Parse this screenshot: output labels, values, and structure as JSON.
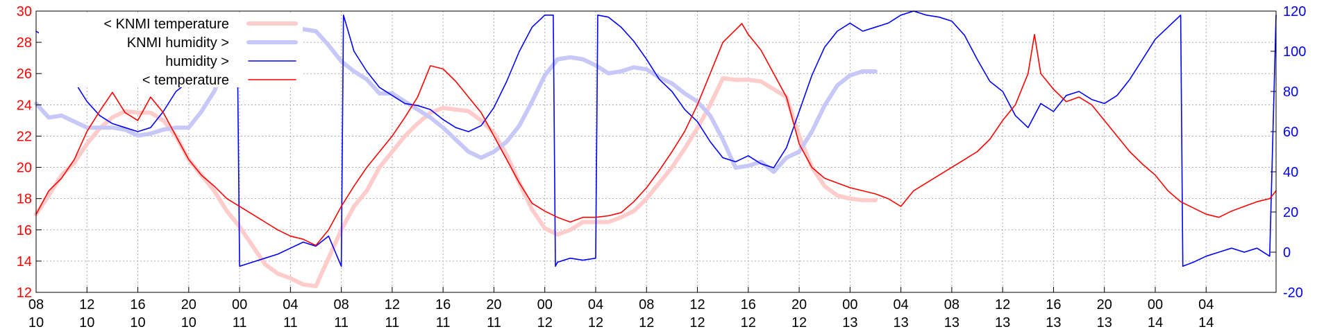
{
  "chart_data": {
    "type": "line",
    "title": "",
    "xlabel": "",
    "ylabel": "",
    "grid": true,
    "legend_placement": "top-left",
    "x_axis": {
      "ticks": [
        {
          "hour": "08",
          "day": "10"
        },
        {
          "hour": "12",
          "day": "10"
        },
        {
          "hour": "16",
          "day": "10"
        },
        {
          "hour": "20",
          "day": "10"
        },
        {
          "hour": "00",
          "day": "11"
        },
        {
          "hour": "04",
          "day": "11"
        },
        {
          "hour": "08",
          "day": "11"
        },
        {
          "hour": "12",
          "day": "11"
        },
        {
          "hour": "16",
          "day": "11"
        },
        {
          "hour": "20",
          "day": "11"
        },
        {
          "hour": "00",
          "day": "12"
        },
        {
          "hour": "04",
          "day": "12"
        },
        {
          "hour": "08",
          "day": "12"
        },
        {
          "hour": "12",
          "day": "12"
        },
        {
          "hour": "16",
          "day": "12"
        },
        {
          "hour": "20",
          "day": "12"
        },
        {
          "hour": "00",
          "day": "13"
        },
        {
          "hour": "04",
          "day": "13"
        },
        {
          "hour": "08",
          "day": "13"
        },
        {
          "hour": "12",
          "day": "13"
        },
        {
          "hour": "16",
          "day": "13"
        },
        {
          "hour": "20",
          "day": "13"
        },
        {
          "hour": "00",
          "day": "14"
        },
        {
          "hour": "04",
          "day": "14"
        }
      ],
      "range": [
        "10 08:00",
        "14 09:30"
      ]
    },
    "y_left": {
      "ticks": [
        "12",
        "14",
        "16",
        "18",
        "20",
        "22",
        "24",
        "26",
        "28",
        "30"
      ],
      "ylim": [
        12,
        30
      ],
      "color": "#ff0000"
    },
    "y_right": {
      "ticks": [
        "-20",
        "0",
        "20",
        "40",
        "60",
        "80",
        "100",
        "120"
      ],
      "ylim": [
        -20,
        120
      ],
      "color": "#0000ff"
    },
    "series": [
      {
        "name": "< KNMI temperature",
        "axis": "left",
        "color": "#ffcccc",
        "x": [
          "10 08:00",
          "10 09:00",
          "10 10:00",
          "10 11:00",
          "10 12:00",
          "10 13:00",
          "10 14:00",
          "10 15:00",
          "10 16:00",
          "10 17:00",
          "10 18:00",
          "10 19:00",
          "10 20:00",
          "10 21:00",
          "10 22:00",
          "10 23:00",
          "11 00:00",
          "11 01:00",
          "11 02:00",
          "11 03:00",
          "11 04:00",
          "11 05:00",
          "11 06:00",
          "11 07:00",
          "11 08:00",
          "11 09:00",
          "11 10:00",
          "11 11:00",
          "11 12:00",
          "11 13:00",
          "11 14:00",
          "11 15:00",
          "11 16:00",
          "11 17:00",
          "11 18:00",
          "11 19:00",
          "11 20:00",
          "11 21:00",
          "11 22:00",
          "11 23:00",
          "12 00:00",
          "12 01:00",
          "12 02:00",
          "12 03:00",
          "12 04:00",
          "12 05:00",
          "12 06:00",
          "12 07:00",
          "12 08:00",
          "12 09:00",
          "12 10:00",
          "12 11:00",
          "12 12:00",
          "12 13:00",
          "12 14:00",
          "12 15:00",
          "12 16:00",
          "12 17:00",
          "12 18:00",
          "12 19:00",
          "12 20:00",
          "12 21:00",
          "12 22:00",
          "12 23:00",
          "13 00:00",
          "13 01:00",
          "13 02:00"
        ],
        "values": [
          17.0,
          18.2,
          19.5,
          20.3,
          21.5,
          22.5,
          23.2,
          23.6,
          23.5,
          23.5,
          23.0,
          22.0,
          20.5,
          19.5,
          18.5,
          17.2,
          16.2,
          15.0,
          13.8,
          13.2,
          12.9,
          12.5,
          12.4,
          14.2,
          16.0,
          17.5,
          18.5,
          20.0,
          21.0,
          22.0,
          22.8,
          23.5,
          23.8,
          23.7,
          23.6,
          23.0,
          22.2,
          20.8,
          19.0,
          17.3,
          16.1,
          15.7,
          16.0,
          16.5,
          16.5,
          16.5,
          16.8,
          17.2,
          18.0,
          19.0,
          20.0,
          21.2,
          22.5,
          24.0,
          25.7,
          25.6,
          25.6,
          25.5,
          25.0,
          24.5,
          22.0,
          20.0,
          18.8,
          18.2,
          18.0,
          17.9,
          17.9
        ]
      },
      {
        "name": "KNMI humidity >",
        "axis": "right",
        "color": "#c8c8f8",
        "x": [
          "10 08:00",
          "10 09:00",
          "10 10:00",
          "10 11:00",
          "10 12:00",
          "10 13:00",
          "10 14:00",
          "10 15:00",
          "10 16:00",
          "10 17:00",
          "10 18:00",
          "10 19:00",
          "10 20:00",
          "10 21:00",
          "10 22:00",
          "10 23:00",
          "11 00:00",
          "11 01:00",
          "11 02:00",
          "11 03:00",
          "11 04:00",
          "11 05:00",
          "11 06:00",
          "11 07:00",
          "11 08:00",
          "11 09:00",
          "11 10:00",
          "11 11:00",
          "11 12:00",
          "11 13:00",
          "11 14:00",
          "11 15:00",
          "11 16:00",
          "11 17:00",
          "11 18:00",
          "11 19:00",
          "11 20:00",
          "11 21:00",
          "11 22:00",
          "11 23:00",
          "12 00:00",
          "12 01:00",
          "12 02:00",
          "12 03:00",
          "12 04:00",
          "12 05:00",
          "12 06:00",
          "12 07:00",
          "12 08:00",
          "12 09:00",
          "12 10:00",
          "12 11:00",
          "12 12:00",
          "12 13:00",
          "12 14:00",
          "12 15:00",
          "12 16:00",
          "12 17:00",
          "12 18:00",
          "12 19:00",
          "12 20:00",
          "12 21:00",
          "12 22:00",
          "12 23:00",
          "13 00:00",
          "13 01:00",
          "13 02:00"
        ],
        "values": [
          74,
          67,
          68,
          65,
          62,
          62,
          62,
          61,
          58,
          59,
          61,
          62,
          62,
          70,
          80,
          95,
          105,
          108,
          110,
          111,
          111,
          111,
          110,
          103,
          95,
          90,
          86,
          79,
          79,
          75,
          71,
          67,
          62,
          56,
          50,
          47,
          50,
          55,
          63,
          75,
          88,
          96,
          97,
          96,
          93,
          89,
          90,
          92,
          91,
          87,
          84,
          79,
          75,
          68,
          56,
          42,
          43,
          45,
          40,
          47,
          50,
          60,
          73,
          83,
          88,
          90,
          90
        ]
      },
      {
        "name": "humidity >",
        "axis": "right",
        "color": "#0000ff",
        "x": [
          "10 08:00",
          "10 08:30",
          "10 09:00",
          "10 09:30",
          "10 11:00",
          "10 12:00",
          "10 13:00",
          "10 14:00",
          "10 15:00",
          "10 16:00",
          "10 17:00",
          "10 18:00",
          "10 19:00",
          "10 20:00",
          "10 21:00",
          "10 22:00",
          "10 23:00",
          "10 23:50",
          "11 00:00",
          "11 01:00",
          "11 02:00",
          "11 03:00",
          "11 04:00",
          "11 05:00",
          "11 06:00",
          "11 07:00",
          "11 08:00",
          "11 08:10",
          "11 09:00",
          "11 10:00",
          "11 11:00",
          "11 12:00",
          "11 13:00",
          "11 14:00",
          "11 15:00",
          "11 16:00",
          "11 17:00",
          "11 18:00",
          "11 19:00",
          "11 20:00",
          "11 21:00",
          "11 22:00",
          "11 23:00",
          "12 00:00",
          "12 00:40",
          "12 00:50",
          "12 01:00",
          "12 02:00",
          "12 03:00",
          "12 04:00",
          "12 04:10",
          "12 05:00",
          "12 06:00",
          "12 07:00",
          "12 08:00",
          "12 09:00",
          "12 10:00",
          "12 11:00",
          "12 12:00",
          "12 13:00",
          "12 14:00",
          "12 15:00",
          "12 16:00",
          "12 17:00",
          "12 18:00",
          "12 19:00",
          "12 20:00",
          "12 21:00",
          "12 22:00",
          "12 23:00",
          "13 00:00",
          "13 01:00",
          "13 02:00",
          "13 03:00",
          "13 04:00",
          "13 05:00",
          "13 06:00",
          "13 07:00",
          "13 08:00",
          "13 09:00",
          "13 10:00",
          "13 11:00",
          "13 12:00",
          "13 13:00",
          "13 14:00",
          "13 15:00",
          "13 16:00",
          "13 17:00",
          "13 18:00",
          "13 19:00",
          "13 20:00",
          "13 21:00",
          "13 22:00",
          "13 23:00",
          "14 00:00",
          "14 01:00",
          "14 02:00",
          "14 02:10",
          "14 03:00",
          "14 04:00",
          "14 05:00",
          "14 06:00",
          "14 07:00",
          "14 08:00",
          "14 09:00",
          "14 09:30"
        ],
        "values": [
          110,
          108,
          115,
          112,
          85,
          75,
          68,
          64,
          62,
          60,
          62,
          70,
          80,
          85,
          85,
          92,
          96,
          100,
          -7,
          -5,
          -3,
          -1,
          2,
          5,
          3,
          8,
          -7,
          118,
          100,
          90,
          82,
          78,
          74,
          73,
          71,
          66,
          62,
          60,
          63,
          72,
          85,
          100,
          112,
          118,
          118,
          -7,
          -5,
          -3,
          -4,
          -3,
          118,
          117,
          112,
          105,
          96,
          86,
          80,
          71,
          65,
          55,
          47,
          45,
          48,
          44,
          42,
          52,
          70,
          88,
          102,
          110,
          114,
          110,
          112,
          114,
          118,
          120,
          118,
          117,
          115,
          108,
          96,
          85,
          80,
          68,
          62,
          74,
          70,
          78,
          80,
          76,
          74,
          78,
          86,
          96,
          106,
          112,
          118,
          -7,
          -5,
          -2,
          0,
          2,
          0,
          2,
          -2,
          118
        ]
      },
      {
        "name": "< temperature",
        "axis": "left",
        "color": "#ff0000",
        "x": [
          "10 08:00",
          "10 09:00",
          "10 10:00",
          "10 11:00",
          "10 12:00",
          "10 13:00",
          "10 14:00",
          "10 15:00",
          "10 16:00",
          "10 17:00",
          "10 18:00",
          "10 19:00",
          "10 20:00",
          "10 21:00",
          "10 22:00",
          "10 23:00",
          "11 00:00",
          "11 01:00",
          "11 02:00",
          "11 03:00",
          "11 04:00",
          "11 05:00",
          "11 06:00",
          "11 07:00",
          "11 08:00",
          "11 09:00",
          "11 10:00",
          "11 11:00",
          "11 12:00",
          "11 13:00",
          "11 14:00",
          "11 15:00",
          "11 16:00",
          "11 17:00",
          "11 18:00",
          "11 19:00",
          "11 20:00",
          "11 21:00",
          "11 22:00",
          "11 23:00",
          "12 00:00",
          "12 01:00",
          "12 02:00",
          "12 03:00",
          "12 04:00",
          "12 05:00",
          "12 06:00",
          "12 07:00",
          "12 08:00",
          "12 09:00",
          "12 10:00",
          "12 11:00",
          "12 12:00",
          "12 13:00",
          "12 14:00",
          "12 15:00",
          "12 15:30",
          "12 16:00",
          "12 17:00",
          "12 18:00",
          "12 19:00",
          "12 20:00",
          "12 21:00",
          "12 22:00",
          "12 23:00",
          "13 00:00",
          "13 01:00",
          "13 02:00",
          "13 03:00",
          "13 04:00",
          "13 05:00",
          "13 06:00",
          "13 07:00",
          "13 08:00",
          "13 09:00",
          "13 10:00",
          "13 11:00",
          "13 12:00",
          "13 13:00",
          "13 14:00",
          "13 14:30",
          "13 15:00",
          "13 16:00",
          "13 17:00",
          "13 18:00",
          "13 19:00",
          "13 20:00",
          "13 21:00",
          "13 22:00",
          "13 23:00",
          "14 00:00",
          "14 01:00",
          "14 02:00",
          "14 03:00",
          "14 04:00",
          "14 05:00",
          "14 06:00",
          "14 07:00",
          "14 08:00",
          "14 09:00",
          "14 09:30"
        ],
        "values": [
          17.0,
          18.5,
          19.3,
          20.5,
          22.3,
          23.6,
          24.8,
          23.5,
          23.0,
          24.5,
          23.5,
          22.0,
          20.5,
          19.5,
          18.8,
          18.0,
          17.5,
          17.0,
          16.5,
          16.0,
          15.6,
          15.4,
          15.0,
          16.0,
          17.5,
          18.8,
          20.0,
          21.0,
          22.0,
          23.2,
          24.5,
          26.5,
          26.3,
          25.5,
          24.5,
          23.5,
          22.0,
          20.5,
          19.0,
          17.7,
          17.2,
          16.8,
          16.5,
          16.8,
          16.8,
          16.9,
          17.1,
          17.8,
          18.7,
          19.8,
          21.0,
          22.3,
          24.0,
          26.0,
          28.0,
          28.8,
          29.2,
          28.5,
          27.5,
          26.0,
          24.5,
          21.5,
          20.0,
          19.3,
          19.0,
          18.7,
          18.5,
          18.3,
          18.0,
          17.5,
          18.5,
          19.0,
          19.5,
          20.0,
          20.5,
          21.0,
          21.8,
          23.0,
          24.0,
          26.0,
          28.5,
          26.0,
          25.0,
          24.2,
          24.5,
          24.0,
          23.0,
          22.0,
          21.0,
          20.2,
          19.5,
          18.5,
          17.8,
          17.4,
          17.0,
          16.8,
          17.2,
          17.5,
          17.8,
          18.0,
          18.5
        ]
      }
    ]
  }
}
